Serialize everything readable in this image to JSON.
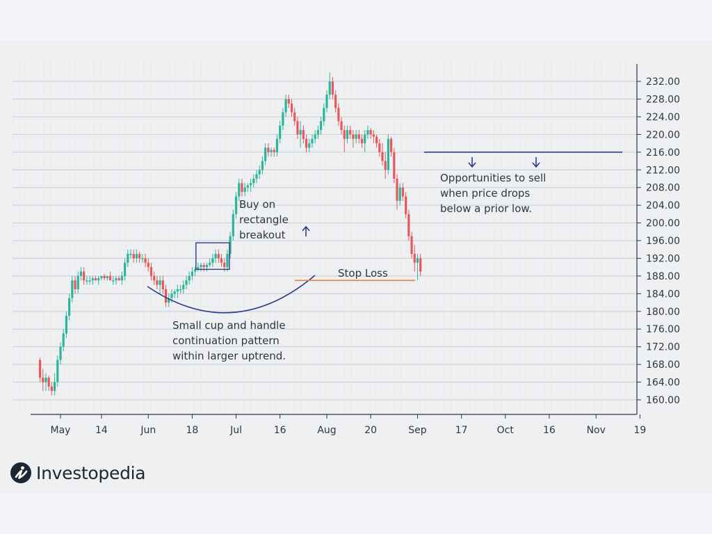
{
  "brand": {
    "name": "Investopedia"
  },
  "colors": {
    "up": "#2bb59a",
    "down": "#e8575c",
    "annotation": "#2d3a87",
    "stop_loss": "#e8823c",
    "grid": "#c9cdd3"
  },
  "annotations": {
    "buy": [
      "Buy on",
      "rectangle",
      "breakout"
    ],
    "stop_loss": "Stop Loss",
    "sell": [
      "Opportunities to sell",
      "when price drops",
      "below a prior low."
    ],
    "cup": [
      "Small cup and handle",
      "continuation pattern",
      "within larger uptrend."
    ]
  },
  "chart_data": {
    "type": "candlestick",
    "title": "",
    "xlabel": "",
    "ylabel": "",
    "ylim": [
      157,
      236
    ],
    "grid": true,
    "y_ticks": [
      "160.00",
      "164.00",
      "168.00",
      "172.00",
      "176.00",
      "180.00",
      "184.00",
      "188.00",
      "192.00",
      "196.00",
      "200.00",
      "204.00",
      "208.00",
      "212.00",
      "216.00",
      "220.00",
      "224.00",
      "228.00",
      "232.00"
    ],
    "x_ticks": [
      {
        "label": "May",
        "day": 0
      },
      {
        "label": "14",
        "day": 14
      },
      {
        "label": "Jun",
        "day": 30
      },
      {
        "label": "18",
        "day": 45
      },
      {
        "label": "Jul",
        "day": 60
      },
      {
        "label": "16",
        "day": 75
      },
      {
        "label": "Aug",
        "day": 91
      },
      {
        "label": "20",
        "day": 106
      },
      {
        "label": "Sep",
        "day": 122
      },
      {
        "label": "17",
        "day": 137
      },
      {
        "label": "Oct",
        "day": 152
      },
      {
        "label": "16",
        "day": 167
      },
      {
        "label": "Nov",
        "day": 183
      },
      {
        "label": "19",
        "day": 198
      }
    ],
    "date_range": [
      "Apr 28",
      "Nov 20"
    ],
    "candles_ohlc": [
      [
        -7,
        169,
        169.5,
        164,
        165
      ],
      [
        -6,
        165,
        167,
        162,
        164
      ],
      [
        -5,
        164,
        166,
        162,
        165
      ],
      [
        -4,
        165,
        165.5,
        162,
        163
      ],
      [
        -3,
        163,
        164,
        161,
        162
      ],
      [
        -2,
        162,
        166,
        161,
        164
      ],
      [
        -1,
        164,
        170,
        163,
        169
      ],
      [
        0,
        169,
        173,
        168,
        172
      ],
      [
        1,
        172,
        176,
        171,
        175
      ],
      [
        2,
        175,
        180,
        174,
        179
      ],
      [
        3,
        179,
        184,
        178,
        183
      ],
      [
        4,
        183,
        188,
        182,
        187
      ],
      [
        5,
        187,
        188,
        184,
        185
      ],
      [
        6,
        185,
        189,
        184,
        188
      ],
      [
        7,
        188,
        190,
        187,
        189
      ],
      [
        8,
        189,
        190,
        186,
        187
      ],
      [
        9,
        187,
        188,
        186,
        187
      ],
      [
        10,
        187,
        188,
        186,
        187
      ],
      [
        11,
        187,
        188,
        186,
        187.5
      ],
      [
        12,
        187.5,
        188,
        187,
        187
      ],
      [
        13,
        187,
        188,
        186,
        187.5
      ],
      [
        14,
        187.5,
        188,
        187,
        188
      ],
      [
        15,
        188,
        188.5,
        187,
        187.5
      ],
      [
        16,
        187.5,
        188,
        187,
        188
      ],
      [
        17,
        188,
        189,
        187,
        187
      ],
      [
        18,
        187,
        188,
        186,
        187
      ],
      [
        19,
        187,
        188,
        186,
        187.5
      ],
      [
        20,
        187.5,
        188,
        187,
        187
      ],
      [
        21,
        187,
        189,
        186,
        188
      ],
      [
        22,
        188,
        192,
        187,
        191
      ],
      [
        23,
        191,
        194,
        190,
        193
      ],
      [
        24,
        193,
        194,
        192,
        193
      ],
      [
        25,
        193,
        194,
        191,
        192
      ],
      [
        26,
        192,
        194,
        191,
        193
      ],
      [
        27,
        193,
        193.5,
        191,
        192
      ],
      [
        28,
        192,
        193,
        191,
        192
      ],
      [
        29,
        192,
        193,
        190,
        191
      ],
      [
        30,
        191,
        192,
        189,
        190
      ],
      [
        31,
        190,
        191,
        187,
        188
      ],
      [
        32,
        188,
        189,
        186,
        187
      ],
      [
        33,
        187,
        188,
        185,
        186
      ],
      [
        34,
        186,
        188,
        184,
        187
      ],
      [
        35,
        187,
        188,
        184,
        185
      ],
      [
        36,
        185,
        186,
        181,
        182
      ],
      [
        37,
        182,
        184,
        181,
        183
      ],
      [
        38,
        183,
        185,
        182,
        184
      ],
      [
        39,
        184,
        185,
        183,
        184.5
      ],
      [
        40,
        184.5,
        186,
        183,
        185
      ],
      [
        41,
        185,
        186,
        184,
        185
      ],
      [
        42,
        185,
        187,
        184,
        186
      ],
      [
        43,
        186,
        188,
        185,
        187
      ],
      [
        44,
        187,
        189,
        186,
        188
      ],
      [
        45,
        188,
        190,
        187,
        189
      ],
      [
        46,
        189,
        190,
        188,
        189.5
      ],
      [
        47,
        189.5,
        191,
        189,
        190
      ],
      [
        48,
        190,
        191,
        189,
        190.5
      ],
      [
        49,
        190.5,
        191,
        189,
        190
      ],
      [
        50,
        190,
        191,
        189,
        190.5
      ],
      [
        51,
        190.5,
        192,
        190,
        191
      ],
      [
        52,
        191,
        193,
        190,
        192
      ],
      [
        53,
        192,
        194,
        191,
        193
      ],
      [
        54,
        193,
        194,
        191,
        192
      ],
      [
        55,
        192,
        193,
        190,
        191
      ],
      [
        56,
        191,
        192,
        189,
        190
      ],
      [
        57,
        190,
        194,
        189,
        193
      ],
      [
        58,
        193,
        198,
        192,
        197
      ],
      [
        59,
        197,
        203,
        196,
        202
      ],
      [
        60,
        202,
        207,
        201,
        206
      ],
      [
        61,
        206,
        210,
        205,
        209
      ],
      [
        62,
        209,
        210,
        206,
        207
      ],
      [
        63,
        207,
        209,
        206,
        208
      ],
      [
        64,
        208,
        209,
        207,
        208.5
      ],
      [
        65,
        208.5,
        210,
        207,
        209
      ],
      [
        66,
        209,
        211,
        208,
        210
      ],
      [
        67,
        210,
        212,
        209,
        211
      ],
      [
        68,
        211,
        213,
        210,
        212
      ],
      [
        69,
        212,
        215,
        211,
        214
      ],
      [
        70,
        214,
        218,
        213,
        217
      ],
      [
        71,
        217,
        218,
        215,
        216
      ],
      [
        72,
        216,
        217,
        215,
        216.5
      ],
      [
        73,
        216.5,
        217,
        215,
        216
      ],
      [
        74,
        216,
        220,
        215,
        219
      ],
      [
        75,
        219,
        223,
        218,
        222
      ],
      [
        76,
        222,
        226,
        221,
        225
      ],
      [
        77,
        225,
        229,
        224,
        228
      ],
      [
        78,
        228,
        229,
        226,
        227
      ],
      [
        79,
        227,
        228,
        224,
        225
      ],
      [
        80,
        225,
        226,
        222,
        223
      ],
      [
        81,
        223,
        224,
        219,
        220
      ],
      [
        82,
        220,
        223,
        217,
        221
      ],
      [
        83,
        221,
        222,
        218,
        219
      ],
      [
        84,
        219,
        220,
        216,
        217
      ],
      [
        85,
        217,
        219,
        216,
        218
      ],
      [
        86,
        218,
        220,
        217,
        219
      ],
      [
        87,
        219,
        221,
        218,
        220
      ],
      [
        88,
        220,
        222,
        219,
        221
      ],
      [
        89,
        221,
        224,
        220,
        223
      ],
      [
        90,
        223,
        227,
        222,
        226
      ],
      [
        91,
        226,
        230,
        225,
        229
      ],
      [
        92,
        229,
        234,
        228,
        232
      ],
      [
        93,
        232,
        233,
        228,
        229
      ],
      [
        94,
        229,
        230,
        225,
        226
      ],
      [
        95,
        226,
        227,
        222,
        223
      ],
      [
        96,
        223,
        224,
        220,
        221
      ],
      [
        97,
        221,
        222,
        216,
        219
      ],
      [
        98,
        219,
        222,
        218,
        221
      ],
      [
        99,
        221,
        222,
        219,
        220
      ],
      [
        100,
        220,
        221,
        217,
        219
      ],
      [
        101,
        219,
        221,
        218,
        220
      ],
      [
        102,
        220,
        221,
        218,
        219
      ],
      [
        103,
        219,
        220,
        217,
        218
      ],
      [
        104,
        218,
        221,
        216,
        220
      ],
      [
        105,
        220,
        222,
        219,
        221
      ],
      [
        106,
        221,
        221.5,
        219,
        220
      ],
      [
        107,
        220,
        221,
        218,
        219.5
      ],
      [
        108,
        219.5,
        220,
        217,
        218
      ],
      [
        109,
        218,
        219,
        215,
        216
      ],
      [
        110,
        216,
        218,
        213,
        214
      ],
      [
        111,
        214,
        216,
        210,
        212
      ],
      [
        112,
        212,
        220,
        211,
        219
      ],
      [
        113,
        219,
        219.5,
        215,
        216
      ],
      [
        114,
        216,
        217,
        209,
        210
      ],
      [
        115,
        210,
        211,
        203,
        205
      ],
      [
        116,
        205,
        209,
        204,
        208
      ],
      [
        117,
        208,
        209,
        205,
        206
      ],
      [
        118,
        206,
        207,
        201,
        202
      ],
      [
        119,
        202,
        203,
        196,
        197
      ],
      [
        120,
        197,
        198,
        192,
        193
      ],
      [
        121,
        193,
        195,
        189,
        191
      ],
      [
        122,
        191,
        193,
        187,
        192
      ],
      [
        123,
        192,
        193,
        188,
        189
      ]
    ],
    "levels": {
      "support": 216.0,
      "stop_loss": 187.0
    },
    "breakout_box": {
      "x": [
        47,
        57
      ],
      "y": [
        189.5,
        195.5
      ]
    }
  }
}
